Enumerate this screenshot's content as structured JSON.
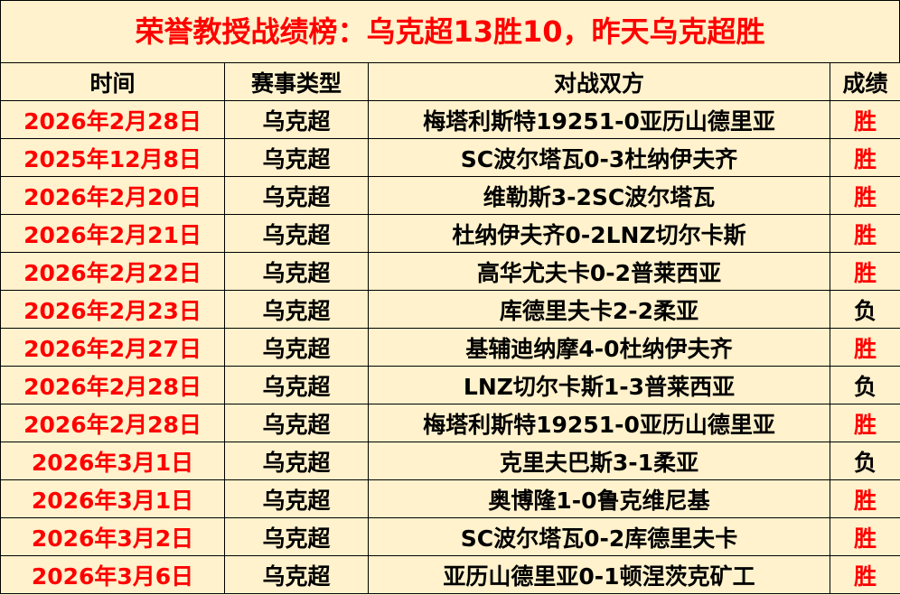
{
  "title": "荣誉教授战绩榜：乌克超13胜10，昨天乌克超胜",
  "headers": [
    "时间",
    "赛事类型",
    "对战双方",
    "成绩"
  ],
  "colors": {
    "background": "#FFF2CC",
    "title": "#FF0000",
    "date": "#FF0000",
    "win": "#FF0000",
    "loss": "#000000"
  },
  "rows": [
    {
      "date": "2026年2月28日",
      "type": "乌克超",
      "match": "梅塔利斯特19251-0亚历山德里亚",
      "result": "胜"
    },
    {
      "date": "2025年12月8日",
      "type": "乌克超",
      "match": "SC波尔塔瓦0-3杜纳伊夫齐",
      "result": "胜"
    },
    {
      "date": "2026年2月20日",
      "type": "乌克超",
      "match": "维勒斯3-2SC波尔塔瓦",
      "result": "胜"
    },
    {
      "date": "2026年2月21日",
      "type": "乌克超",
      "match": "杜纳伊夫齐0-2LNZ切尔卡斯",
      "result": "胜"
    },
    {
      "date": "2026年2月22日",
      "type": "乌克超",
      "match": "高华尤夫卡0-2普莱西亚",
      "result": "胜"
    },
    {
      "date": "2026年2月23日",
      "type": "乌克超",
      "match": "库德里夫卡2-2柔亚",
      "result": "负"
    },
    {
      "date": "2026年2月27日",
      "type": "乌克超",
      "match": "基辅迪纳摩4-0杜纳伊夫齐",
      "result": "胜"
    },
    {
      "date": "2026年2月28日",
      "type": "乌克超",
      "match": "LNZ切尔卡斯1-3普莱西亚",
      "result": "负"
    },
    {
      "date": "2026年2月28日",
      "type": "乌克超",
      "match": "梅塔利斯特19251-0亚历山德里亚",
      "result": "胜"
    },
    {
      "date": "2026年3月1日",
      "type": "乌克超",
      "match": "克里夫巴斯3-1柔亚",
      "result": "负"
    },
    {
      "date": "2026年3月1日",
      "type": "乌克超",
      "match": "奥博隆1-0鲁克维尼基",
      "result": "胜"
    },
    {
      "date": "2026年3月2日",
      "type": "乌克超",
      "match": "SC波尔塔瓦0-2库德里夫卡",
      "result": "胜"
    },
    {
      "date": "2026年3月6日",
      "type": "乌克超",
      "match": "亚历山德里亚0-1顿涅茨克矿工",
      "result": "胜"
    }
  ]
}
